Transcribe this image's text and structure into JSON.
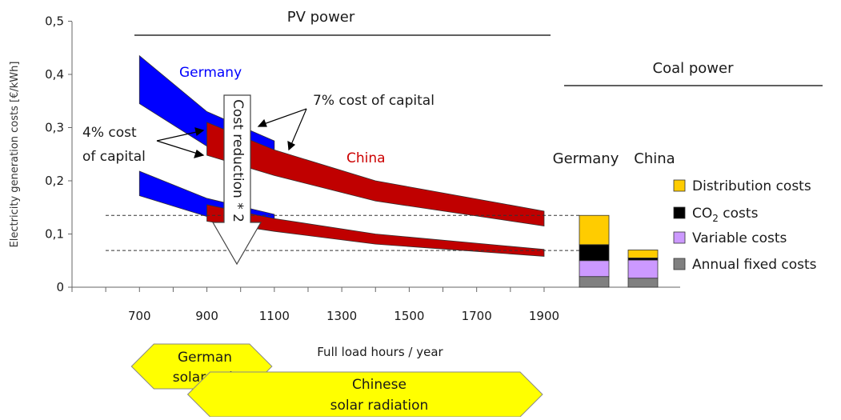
{
  "chart_data": {
    "type": "area",
    "xlabel": "Full load hours / year",
    "ylabel": "Electricity generation costs [€/kWh]",
    "xlim": [
      500,
      1900
    ],
    "ylim": [
      0,
      0.5
    ],
    "x_ticks": [
      "700",
      "900",
      "1100",
      "1300",
      "1500",
      "1700",
      "1900"
    ],
    "y_ticks": [
      "0",
      "0,1",
      "0,2",
      "0,3",
      "0,4",
      "0,5"
    ],
    "grid": false,
    "pv_title": "PV power",
    "coal_title": "Coal power",
    "series": [
      {
        "name": "Germany",
        "label_color": "#0000ff",
        "color": "#0000ff",
        "bands": [
          {
            "x": [
              700,
              900,
              1100
            ],
            "lower": [
              0.345,
              0.265,
              0.215
            ],
            "upper": [
              0.435,
              0.33,
              0.275
            ]
          },
          {
            "x": [
              700,
              900,
              1100
            ],
            "lower": [
              0.172,
              0.133,
              0.108
            ],
            "upper": [
              0.218,
              0.167,
              0.137
            ]
          }
        ]
      },
      {
        "name": "China",
        "label_color": "#cc0000",
        "color": "#c00000",
        "bands": [
          {
            "x": [
              900,
              1100,
              1400,
              1900
            ],
            "lower": [
              0.248,
              0.21,
              0.162,
              0.115
            ],
            "upper": [
              0.31,
              0.258,
              0.2,
              0.143
            ]
          },
          {
            "x": [
              900,
              1100,
              1400,
              1900
            ],
            "lower": [
              0.124,
              0.105,
              0.081,
              0.058
            ],
            "upper": [
              0.155,
              0.129,
              0.1,
              0.071
            ]
          }
        ]
      }
    ],
    "reference_lines": [
      0.135,
      0.069
    ],
    "annotations": {
      "germany": "Germany",
      "china": "China",
      "capital_4_line1": "4% cost",
      "capital_4_line2": "of capital",
      "capital_7": "7% cost of capital",
      "cost_reduction": "Cost reduction * 2"
    },
    "coal": {
      "categories": [
        "Germany",
        "China"
      ],
      "stack_order": [
        "Annual fixed costs",
        "Variable costs",
        "CO2 costs",
        "Distribution costs"
      ],
      "values": {
        "Germany": [
          0.02,
          0.03,
          0.03,
          0.055
        ],
        "China": [
          0.017,
          0.034,
          0.004,
          0.015
        ]
      },
      "colors": [
        "#808080",
        "#cc99ff",
        "#000000",
        "#ffcc00"
      ]
    },
    "legend": {
      "placement": "right",
      "items": [
        {
          "key": "distribution",
          "label": "Distribution costs",
          "color": "#ffcc00"
        },
        {
          "key": "co2",
          "label_main": "CO",
          "label_sub": "2",
          "label_rest": " costs",
          "color": "#000000"
        },
        {
          "key": "variable",
          "label": "Variable costs",
          "color": "#cc99ff"
        },
        {
          "key": "fixed",
          "label": "Annual fixed costs",
          "color": "#808080"
        }
      ]
    },
    "radiation": {
      "german_line1": "German",
      "german_line2": "solar rad.",
      "chinese_line1": "Chinese",
      "chinese_line2": "solar radiation",
      "german_range": [
        700,
        1100
      ],
      "chinese_range": [
        900,
        1900
      ],
      "color": "#ffff00"
    }
  }
}
